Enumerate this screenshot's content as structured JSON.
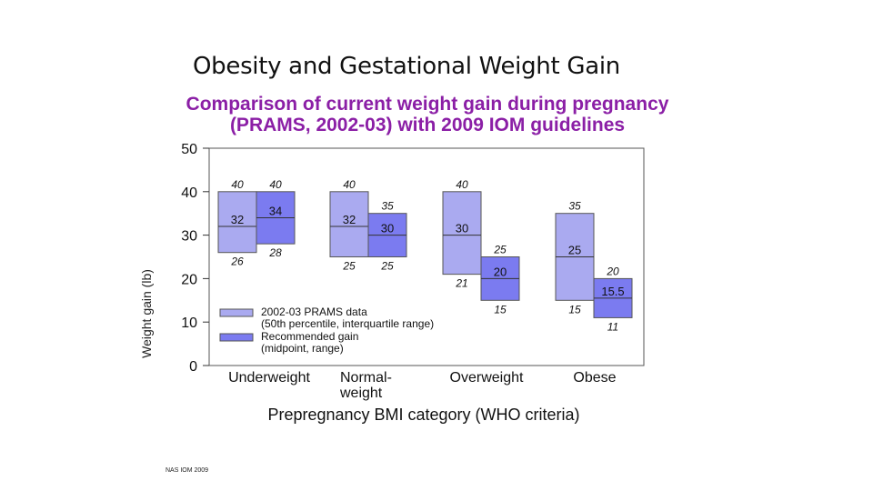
{
  "slide_title": "Obesity and Gestational Weight Gain",
  "source_note": "NAS IOM 2009",
  "chart_data": {
    "type": "box",
    "title_lines": [
      "Comparison of current weight gain during pregnancy",
      "(PRAMS, 2002-03) with 2009 IOM guidelines"
    ],
    "title_color": "#8b1fa6",
    "ylabel": "Weight gain (lb)",
    "xlabel": "Prepregnancy BMI category (WHO criteria)",
    "ylim": [
      0,
      50
    ],
    "yticks": [
      0,
      10,
      20,
      30,
      40,
      50
    ],
    "categories": [
      {
        "name": "Underweight",
        "label_lines": [
          "Underweight"
        ]
      },
      {
        "name": "Normal-weight",
        "label_lines": [
          "Normal-",
          "weight"
        ]
      },
      {
        "name": "Overweight",
        "label_lines": [
          "Overweight"
        ]
      },
      {
        "name": "Obese",
        "label_lines": [
          "Obese"
        ]
      }
    ],
    "series": [
      {
        "name": "2002-03 PRAMS data",
        "legend_lines": [
          "2002-03 PRAMS data",
          "(50th percentile, interquartile range)"
        ],
        "color": "#aaaaf0",
        "boxes": [
          {
            "low": 26,
            "mid": 32,
            "high": 40,
            "low_label": "26",
            "mid_label": "32",
            "high_label": "40"
          },
          {
            "low": 25,
            "mid": 32,
            "high": 40,
            "low_label": "25",
            "mid_label": "32",
            "high_label": "40"
          },
          {
            "low": 21,
            "mid": 30,
            "high": 40,
            "low_label": "21",
            "mid_label": "30",
            "high_label": "40"
          },
          {
            "low": 15,
            "mid": 25,
            "high": 35,
            "low_label": "15",
            "mid_label": "25",
            "high_label": "35"
          }
        ]
      },
      {
        "name": "Recommended gain",
        "legend_lines": [
          "Recommended gain",
          "(midpoint, range)"
        ],
        "color": "#7b7bf0",
        "boxes": [
          {
            "low": 28,
            "mid": 34,
            "high": 40,
            "low_label": "28",
            "mid_label": "34",
            "high_label": "40"
          },
          {
            "low": 25,
            "mid": 30,
            "high": 35,
            "low_label": "25",
            "mid_label": "30",
            "high_label": "35"
          },
          {
            "low": 15,
            "mid": 20,
            "high": 25,
            "low_label": "15",
            "mid_label": "20",
            "high_label": "25"
          },
          {
            "low": 11,
            "mid": 15.5,
            "high": 20,
            "low_label": "11",
            "mid_label": "15.5",
            "high_label": "20"
          }
        ]
      }
    ]
  }
}
